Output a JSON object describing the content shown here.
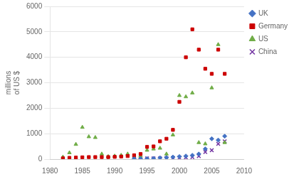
{
  "chart_data": {
    "type": "scatter",
    "ylabel": "millions\nof US $",
    "xlim": [
      1980,
      2010
    ],
    "xticks": [
      1980,
      1985,
      1990,
      1995,
      2000,
      2005,
      2010
    ],
    "ylim": [
      0,
      6000
    ],
    "yticks": [
      0,
      1000,
      2000,
      3000,
      4000,
      5000,
      6000
    ],
    "grid": "y",
    "legend": "upper right",
    "series": [
      {
        "name": "UK",
        "color": "#4472C4",
        "marker": "diamond",
        "x": [
          1993,
          1994,
          1995,
          1996,
          1997,
          1998,
          1999,
          2000,
          2001,
          2002,
          2003,
          2004,
          2005,
          2006,
          2007
        ],
        "values": [
          10,
          15,
          20,
          30,
          50,
          60,
          80,
          100,
          120,
          150,
          200,
          400,
          800,
          750,
          900
        ]
      },
      {
        "name": "Germany",
        "color": "#CC0000",
        "marker": "square",
        "x": [
          1982,
          1983,
          1984,
          1985,
          1986,
          1987,
          1988,
          1989,
          1990,
          1991,
          1992,
          1993,
          1994,
          1995,
          1996,
          1997,
          1998,
          1999,
          2000,
          2001,
          2002,
          2003,
          2004,
          2005,
          2006,
          2007
        ],
        "values": [
          30,
          50,
          60,
          70,
          80,
          80,
          80,
          80,
          90,
          100,
          120,
          150,
          200,
          480,
          500,
          700,
          800,
          1150,
          2250,
          4000,
          5100,
          4300,
          3550,
          3350,
          4300,
          3350
        ]
      },
      {
        "name": "US",
        "color": "#70AD47",
        "marker": "triangle",
        "x": [
          1982,
          1983,
          1984,
          1985,
          1986,
          1987,
          1988,
          1989,
          1990,
          1991,
          1992,
          1993,
          1994,
          1995,
          1996,
          1997,
          1998,
          1999,
          2000,
          2001,
          2002,
          2003,
          2004,
          2005,
          2006,
          2007
        ],
        "values": [
          80,
          250,
          580,
          1250,
          880,
          850,
          200,
          100,
          120,
          150,
          200,
          50,
          120,
          350,
          400,
          430,
          200,
          950,
          2500,
          2450,
          2600,
          650,
          600,
          2800,
          4500,
          650
        ]
      },
      {
        "name": "China",
        "color": "#7030A0",
        "marker": "x",
        "x": [
          1993,
          1994,
          1995,
          1996,
          1997,
          1998,
          1999,
          2000,
          2001,
          2002,
          2003,
          2004,
          2005,
          2006,
          2007
        ],
        "values": [
          20,
          30,
          30,
          30,
          30,
          35,
          40,
          50,
          60,
          80,
          120,
          280,
          350,
          600,
          700
        ]
      }
    ]
  }
}
